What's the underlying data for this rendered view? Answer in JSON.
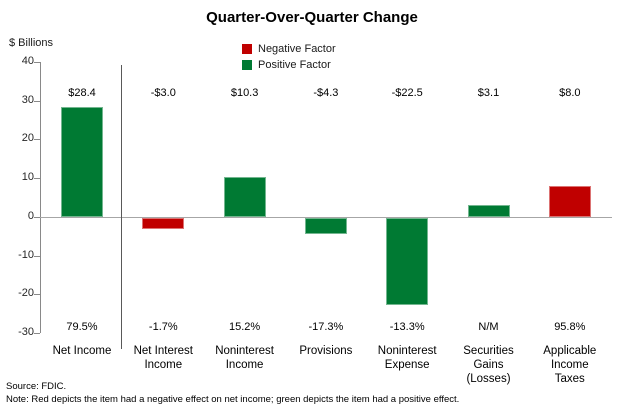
{
  "chart_data": {
    "type": "bar",
    "title": "Quarter-Over-Quarter Change",
    "ylabel": "$ Billions",
    "ylim": [
      -30,
      40
    ],
    "yticks": [
      40,
      30,
      20,
      10,
      0,
      -10,
      -20,
      -30
    ],
    "grid": false,
    "legend_position": "top-center",
    "legend": [
      {
        "label": "Negative Factor",
        "color": "#c00000"
      },
      {
        "label": "Positive Factor",
        "color": "#007a33"
      }
    ],
    "colors": {
      "positive": "#007a33",
      "negative": "#c00000"
    },
    "categories": [
      "Net Income",
      "Net Interest Income",
      "Noninterest Income",
      "Provisions",
      "Noninterest Expense",
      "Securities Gains (Losses)",
      "Applicable Income Taxes"
    ],
    "category_label_lines": [
      [
        "Net Income"
      ],
      [
        "Net Interest",
        "Income"
      ],
      [
        "Noninterest",
        "Income"
      ],
      [
        "Provisions"
      ],
      [
        "Noninterest",
        "Expense"
      ],
      [
        "Securities",
        "Gains",
        "(Losses)"
      ],
      [
        "Applicable",
        "Income",
        "Taxes"
      ]
    ],
    "values": [
      28.4,
      -3.0,
      10.3,
      -4.3,
      -22.5,
      3.1,
      8.0
    ],
    "factors": [
      "positive",
      "negative",
      "positive",
      "positive",
      "positive",
      "positive",
      "negative"
    ],
    "value_labels": [
      "$28.4",
      "-$3.0",
      "$10.3",
      "-$4.3",
      "-$22.5",
      "$3.1",
      "$8.0"
    ],
    "pct_labels": [
      "79.5%",
      "-1.7%",
      "15.2%",
      "-17.3%",
      "-13.3%",
      "N/M",
      "95.8%"
    ],
    "separator_after_category_index": 0
  },
  "footer": {
    "source": "Source: FDIC.",
    "note": "Note: Red depicts the item had a negative effect on net income; green depicts the item had a positive effect."
  }
}
